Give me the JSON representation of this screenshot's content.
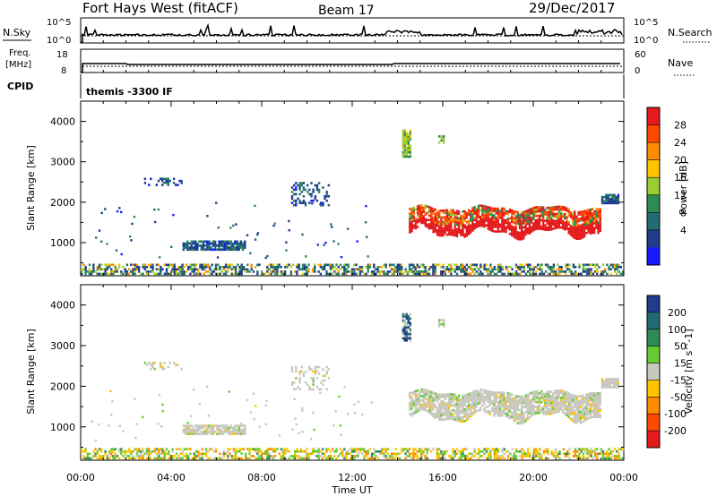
{
  "header": {
    "station": "Fort Hays West (fitACF)",
    "beam": "Beam 17",
    "date": "29/Dec/2017"
  },
  "top_panels": {
    "nsky_label": "N.Sky",
    "nsky_ticks_left": [
      "10^5",
      "10^0"
    ],
    "nsky_ticks_right": [
      "10^5",
      "10^0"
    ],
    "nsearch_label": "N.Search",
    "freq_label": "Freq.",
    "freq_unit": "[MHz]",
    "freq_ticks": [
      "18",
      "8"
    ],
    "nave_ticks": [
      "60",
      "0"
    ],
    "nave_label": "Nave",
    "cpid_label": "CPID",
    "cpid_value": "themis -3300 IF"
  },
  "chart_data": [
    {
      "type": "heatmap",
      "name": "Power",
      "ylabel": "Slant Range [km]",
      "xlabel": "Time UT",
      "ylim": [
        180,
        4500
      ],
      "xlim_hours": [
        0,
        24
      ],
      "yticks": [
        1000,
        2000,
        3000,
        4000
      ],
      "colorbar_label": "Power [dB]",
      "colorbar_ticks": [
        "28",
        "24",
        "20",
        "16",
        "12",
        "8",
        "4"
      ],
      "colorbar_colors": [
        "#e41a1c",
        "#ff4800",
        "#ff8c00",
        "#ffc400",
        "#9acd32",
        "#2e8b57",
        "#236b73",
        "#1f3d8a",
        "#1919ff"
      ],
      "echo_regions": [
        {
          "t0": 0.0,
          "t1": 24.0,
          "r0": 200,
          "r1": 480,
          "level": "mixed"
        },
        {
          "t0": 4.5,
          "t1": 7.3,
          "r0": 800,
          "r1": 1050,
          "level": "low"
        },
        {
          "t0": 2.8,
          "t1": 4.5,
          "r0": 2400,
          "r1": 2600,
          "level": "low"
        },
        {
          "t0": 9.3,
          "t1": 11.0,
          "r0": 1900,
          "r1": 2500,
          "level": "low"
        },
        {
          "t0": 14.5,
          "t1": 23.0,
          "r0": 1150,
          "r1": 1900,
          "level": "high"
        },
        {
          "t0": 23.0,
          "t1": 23.8,
          "r0": 1950,
          "r1": 2200,
          "level": "low"
        },
        {
          "t0": 14.2,
          "t1": 14.6,
          "r0": 3100,
          "r1": 3800,
          "level": "mid"
        },
        {
          "t0": 15.8,
          "t1": 16.1,
          "r0": 3450,
          "r1": 3650,
          "level": "mid"
        }
      ]
    },
    {
      "type": "heatmap",
      "name": "Velocity",
      "ylabel": "Slant Range [km]",
      "xlabel": "Time UT",
      "ylim": [
        180,
        4500
      ],
      "xlim_hours": [
        0,
        24
      ],
      "yticks": [
        1000,
        2000,
        3000,
        4000
      ],
      "colorbar_label": "Velocity [m s^-1]",
      "colorbar_ticks": [
        "200",
        "100",
        "50",
        "15",
        "-15",
        "-50",
        "-100",
        "-200"
      ],
      "colorbar_colors": [
        "#1f3d8a",
        "#236b73",
        "#2e8b57",
        "#66cc33",
        "#c8c8be",
        "#ffc400",
        "#ff8c00",
        "#ff4800",
        "#e41a1c"
      ],
      "echo_regions": [
        {
          "t0": 0.0,
          "t1": 24.0,
          "r0": 200,
          "r1": 480,
          "level": "mixed"
        },
        {
          "t0": 4.5,
          "t1": 7.3,
          "r0": 800,
          "r1": 1050,
          "level": "zero"
        },
        {
          "t0": 2.8,
          "t1": 4.5,
          "r0": 2400,
          "r1": 2600,
          "level": "zero"
        },
        {
          "t0": 9.3,
          "t1": 11.0,
          "r0": 1900,
          "r1": 2500,
          "level": "zero"
        },
        {
          "t0": 14.5,
          "t1": 23.0,
          "r0": 1150,
          "r1": 1900,
          "level": "zero"
        },
        {
          "t0": 23.0,
          "t1": 23.8,
          "r0": 1950,
          "r1": 2200,
          "level": "zero"
        },
        {
          "t0": 14.2,
          "t1": 14.6,
          "r0": 3100,
          "r1": 3800,
          "level": "neg"
        },
        {
          "t0": 15.8,
          "t1": 16.1,
          "r0": 3450,
          "r1": 3650,
          "level": "zero"
        }
      ]
    }
  ],
  "xaxis": {
    "ticks": [
      "00:00",
      "04:00",
      "08:00",
      "12:00",
      "16:00",
      "20:00",
      "00:00"
    ],
    "label": "Time UT"
  }
}
